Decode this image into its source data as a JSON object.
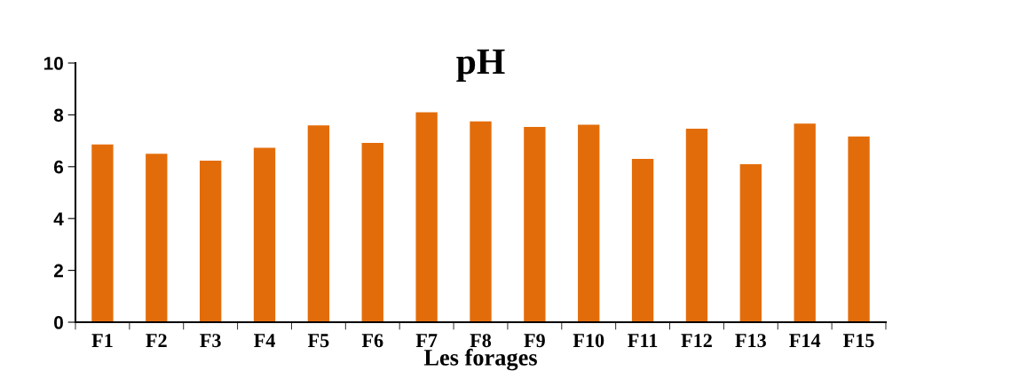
{
  "chart_data": {
    "type": "bar",
    "title": "pH",
    "xlabel": "Les forages",
    "categories": [
      "F1",
      "F2",
      "F3",
      "F4",
      "F5",
      "F6",
      "F7",
      "F8",
      "F9",
      "F10",
      "F11",
      "F12",
      "F13",
      "F14",
      "F15"
    ],
    "values": [
      6.86,
      6.5,
      6.23,
      6.73,
      7.59,
      6.92,
      8.1,
      7.75,
      7.53,
      7.62,
      6.3,
      7.47,
      6.1,
      7.66,
      7.17
    ],
    "color": "#e36c0a",
    "ylim": [
      0,
      10
    ],
    "yticks": [
      0,
      2,
      4,
      6,
      8,
      10
    ],
    "grid": false,
    "legend": false
  }
}
